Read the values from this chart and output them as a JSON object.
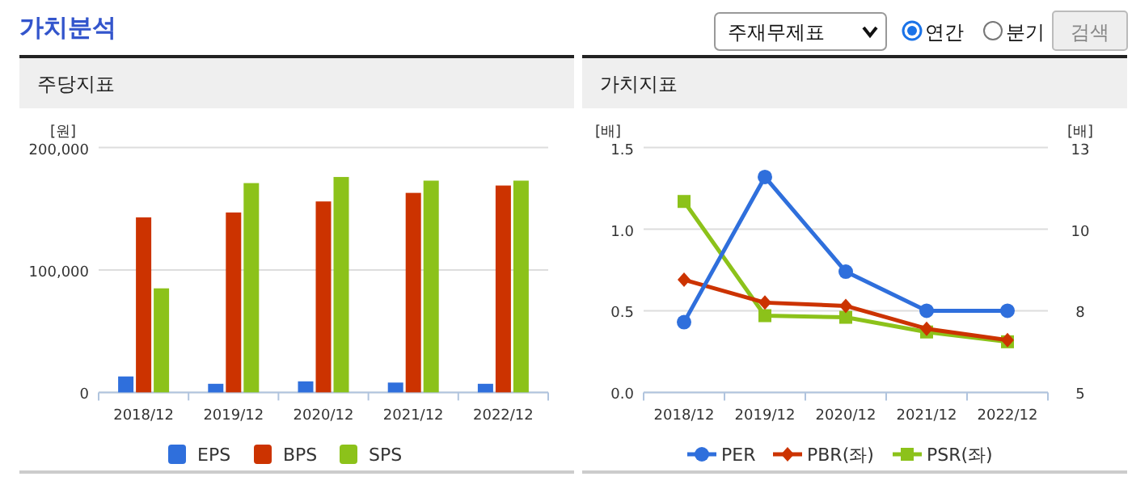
{
  "chart_data": [
    {
      "type": "bar",
      "title": "주당지표",
      "ylabel": "[원]",
      "annotations": [
        "가치분석",
        "주재무제표",
        "연간",
        "분기",
        "검색"
      ],
      "categories": [
        "2018/12",
        "2019/12",
        "2020/12",
        "2021/12",
        "2022/12"
      ],
      "series": [
        {
          "name": "EPS",
          "color": "#2f6fdc",
          "values": [
            13000,
            7000,
            9000,
            8000,
            7000
          ]
        },
        {
          "name": "BPS",
          "color": "#cc3300",
          "values": [
            143000,
            147000,
            156000,
            163000,
            169000
          ]
        },
        {
          "name": "SPS",
          "color": "#8cc21a",
          "values": [
            85000,
            171000,
            176000,
            173000,
            173000
          ]
        }
      ],
      "ylim": [
        0,
        200000
      ],
      "yticks": [
        {
          "value": 0,
          "label": "0"
        },
        {
          "value": 100000,
          "label": "100,000"
        },
        {
          "value": 200000,
          "label": "200,000"
        }
      ],
      "grid": "y",
      "legend": "bottom"
    },
    {
      "type": "line",
      "title": "가치지표",
      "ylabel": "[배]",
      "y2label": "[배]",
      "categories": [
        "2018/12",
        "2019/12",
        "2020/12",
        "2021/12",
        "2022/12"
      ],
      "series": [
        {
          "name": "PER",
          "color": "#2f6fdc",
          "axis": "y2",
          "marker": "circle",
          "values": [
            7.15,
            11.6,
            8.7,
            7.5,
            7.5
          ]
        },
        {
          "name": "PBR(좌)",
          "color": "#cc3300",
          "marker": "diamond",
          "values": [
            0.69,
            0.55,
            0.53,
            0.39,
            0.32
          ]
        },
        {
          "name": "PSR(좌)",
          "color": "#8cc21a",
          "marker": "square",
          "values": [
            1.17,
            0.47,
            0.46,
            0.37,
            0.31
          ]
        }
      ],
      "ylim": [
        0,
        1.5
      ],
      "yticks": [
        {
          "value": 0,
          "label": "0.0"
        },
        {
          "value": 0.5,
          "label": "0.5"
        },
        {
          "value": 1,
          "label": "1.0"
        },
        {
          "value": 1.5,
          "label": "1.5"
        }
      ],
      "y2lim": [
        5,
        12.5
      ],
      "y2ticks": [
        5,
        {
          "value": 7.5,
          "label": "8"
        },
        10,
        {
          "value": 12.5,
          "label": "13"
        }
      ],
      "grid": "y",
      "legend": "bottom"
    }
  ]
}
